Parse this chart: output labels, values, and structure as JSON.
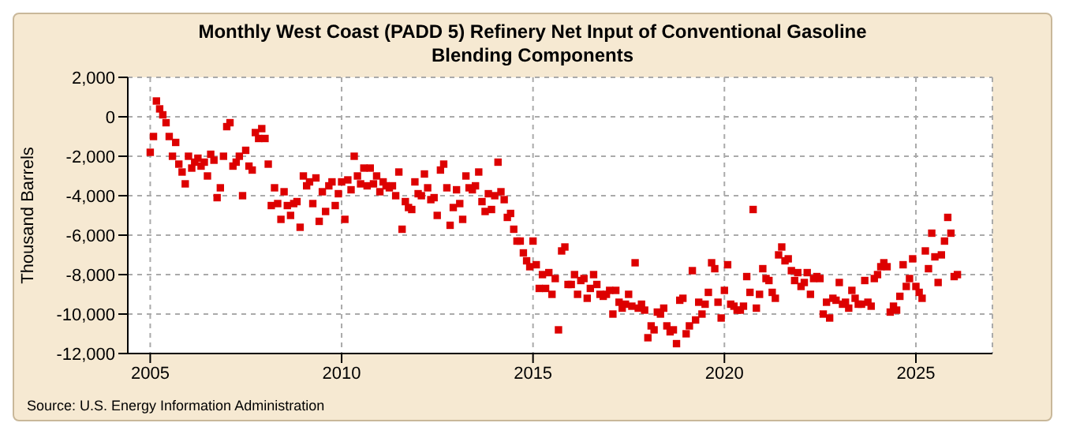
{
  "chart_data": {
    "type": "scatter",
    "title": "Monthly West Coast (PADD 5) Refinery Net Input of Conventional Gasoline Blending Components",
    "ylabel": "Thousand Barrels",
    "annotations": [
      "Source: U.S. Energy Information Administration"
    ],
    "marker": "square",
    "grid": true,
    "xlim": [
      "2004-06",
      "2027-01"
    ],
    "xticks": [
      {
        "value": "2005",
        "label": "2005"
      },
      {
        "value": "2010",
        "label": "2010"
      },
      {
        "value": "2015",
        "label": "2015"
      },
      {
        "value": "2020",
        "label": "2020"
      },
      {
        "value": "2025",
        "label": "2025"
      }
    ],
    "ylim": [
      -12000,
      2000
    ],
    "yticks": [
      {
        "value": -12000,
        "label": "-12,000"
      },
      {
        "value": -10000,
        "label": "-10,000"
      },
      {
        "value": -8000,
        "label": "-8,000"
      },
      {
        "value": -6000,
        "label": "-6,000"
      },
      {
        "value": -4000,
        "label": "-4,000"
      },
      {
        "value": -2000,
        "label": "-2,000"
      },
      {
        "value": 0,
        "label": "0"
      },
      {
        "value": 2000,
        "label": "2,000"
      }
    ],
    "x": [
      "2005-01",
      "2005-02",
      "2005-03",
      "2005-04",
      "2005-05",
      "2005-06",
      "2005-07",
      "2005-08",
      "2005-09",
      "2005-10",
      "2005-11",
      "2005-12",
      "2006-01",
      "2006-02",
      "2006-03",
      "2006-04",
      "2006-05",
      "2006-06",
      "2006-07",
      "2006-08",
      "2006-09",
      "2006-10",
      "2006-11",
      "2006-12",
      "2007-01",
      "2007-02",
      "2007-03",
      "2007-04",
      "2007-05",
      "2007-06",
      "2007-07",
      "2007-08",
      "2007-09",
      "2007-10",
      "2007-11",
      "2007-12",
      "2008-01",
      "2008-02",
      "2008-03",
      "2008-04",
      "2008-05",
      "2008-06",
      "2008-07",
      "2008-08",
      "2008-09",
      "2008-10",
      "2008-11",
      "2008-12",
      "2009-01",
      "2009-02",
      "2009-03",
      "2009-04",
      "2009-05",
      "2009-06",
      "2009-07",
      "2009-08",
      "2009-09",
      "2009-10",
      "2009-11",
      "2009-12",
      "2010-01",
      "2010-02",
      "2010-03",
      "2010-04",
      "2010-05",
      "2010-06",
      "2010-07",
      "2010-08",
      "2010-09",
      "2010-10",
      "2010-11",
      "2010-12",
      "2011-01",
      "2011-02",
      "2011-03",
      "2011-04",
      "2011-05",
      "2011-06",
      "2011-07",
      "2011-08",
      "2011-09",
      "2011-10",
      "2011-11",
      "2011-12",
      "2012-01",
      "2012-02",
      "2012-03",
      "2012-04",
      "2012-05",
      "2012-06",
      "2012-07",
      "2012-08",
      "2012-09",
      "2012-10",
      "2012-11",
      "2012-12",
      "2013-01",
      "2013-02",
      "2013-03",
      "2013-04",
      "2013-05",
      "2013-06",
      "2013-07",
      "2013-08",
      "2013-09",
      "2013-10",
      "2013-11",
      "2013-12",
      "2014-01",
      "2014-02",
      "2014-03",
      "2014-04",
      "2014-05",
      "2014-06",
      "2014-07",
      "2014-08",
      "2014-09",
      "2014-10",
      "2014-11",
      "2014-12",
      "2015-01",
      "2015-02",
      "2015-03",
      "2015-04",
      "2015-05",
      "2015-06",
      "2015-07",
      "2015-08",
      "2015-09",
      "2015-10",
      "2015-11",
      "2015-12",
      "2016-01",
      "2016-02",
      "2016-03",
      "2016-04",
      "2016-05",
      "2016-06",
      "2016-07",
      "2016-08",
      "2016-09",
      "2016-10",
      "2016-11",
      "2016-12",
      "2017-01",
      "2017-02",
      "2017-03",
      "2017-04",
      "2017-05",
      "2017-06",
      "2017-07",
      "2017-08",
      "2017-09",
      "2017-10",
      "2017-11",
      "2017-12",
      "2018-01",
      "2018-02",
      "2018-03",
      "2018-04",
      "2018-05",
      "2018-06",
      "2018-07",
      "2018-08",
      "2018-09",
      "2018-10",
      "2018-11",
      "2018-12",
      "2019-01",
      "2019-02",
      "2019-03",
      "2019-04",
      "2019-05",
      "2019-06",
      "2019-07",
      "2019-08",
      "2019-09",
      "2019-10",
      "2019-11",
      "2019-12",
      "2020-01",
      "2020-02",
      "2020-03",
      "2020-04",
      "2020-05",
      "2020-06",
      "2020-07",
      "2020-08",
      "2020-09",
      "2020-10",
      "2020-11",
      "2020-12",
      "2021-01",
      "2021-02",
      "2021-03",
      "2021-04",
      "2021-05",
      "2021-06",
      "2021-07",
      "2021-08",
      "2021-09",
      "2021-10",
      "2021-11",
      "2021-12",
      "2022-01",
      "2022-02",
      "2022-03",
      "2022-04",
      "2022-05",
      "2022-06",
      "2022-07",
      "2022-08",
      "2022-09",
      "2022-10",
      "2022-11",
      "2022-12",
      "2023-01",
      "2023-02",
      "2023-03",
      "2023-04",
      "2023-05",
      "2023-06",
      "2023-07",
      "2023-08",
      "2023-09",
      "2023-10",
      "2023-11",
      "2023-12",
      "2024-01",
      "2024-02",
      "2024-03",
      "2024-04",
      "2024-05",
      "2024-06",
      "2024-07",
      "2024-08",
      "2024-09",
      "2024-10",
      "2024-11",
      "2024-12",
      "2025-01",
      "2025-02",
      "2025-03",
      "2025-04",
      "2025-05",
      "2025-06",
      "2025-07",
      "2025-08",
      "2025-09",
      "2025-10",
      "2025-11",
      "2025-12",
      "2026-01",
      "2026-02"
    ],
    "series": [
      {
        "color": "#dd0000",
        "values": [
          -1800,
          -1000,
          800,
          400,
          100,
          -300,
          -1000,
          -2000,
          -1300,
          -2400,
          -2800,
          -3400,
          -2000,
          -2600,
          -2300,
          -2100,
          -2500,
          -2300,
          -3000,
          -1900,
          -2200,
          -4100,
          -3600,
          -2000,
          -500,
          -300,
          -2500,
          -2300,
          -2000,
          -4000,
          -1700,
          -2500,
          -2700,
          -800,
          -1100,
          -600,
          -1100,
          -2400,
          -4500,
          -3600,
          -4400,
          -5200,
          -3800,
          -4500,
          -5000,
          -4400,
          -4300,
          -5600,
          -3000,
          -3500,
          -3300,
          -4400,
          -3100,
          -5300,
          -3800,
          -4800,
          -3500,
          -3300,
          -4500,
          -3900,
          -3300,
          -5200,
          -3200,
          -3700,
          -2000,
          -3000,
          -3400,
          -2600,
          -3500,
          -2600,
          -3400,
          -3000,
          -3800,
          -3300,
          -3500,
          -3600,
          -3500,
          -4000,
          -2800,
          -5700,
          -4300,
          -4600,
          -4700,
          -3300,
          -3900,
          -4000,
          -2900,
          -3600,
          -4200,
          -4100,
          -5000,
          -2700,
          -2400,
          -3600,
          -5500,
          -4600,
          -3700,
          -4400,
          -5200,
          -3000,
          -3600,
          -3700,
          -3500,
          -2800,
          -4300,
          -4800,
          -3900,
          -4700,
          -4000,
          -2300,
          -3800,
          -4200,
          -5100,
          -4900,
          -5700,
          -6300,
          -6300,
          -6900,
          -7300,
          -7600,
          -6300,
          -7500,
          -8700,
          -8000,
          -8700,
          -7900,
          -9000,
          -8200,
          -10800,
          -6800,
          -6600,
          -8500,
          -8500,
          -8000,
          -9000,
          -8300,
          -8200,
          -9200,
          -8700,
          -8000,
          -8500,
          -9000,
          -9100,
          -9000,
          -8800,
          -10000,
          -8800,
          -9400,
          -9700,
          -9500,
          -9000,
          -9600,
          -7400,
          -9700,
          -9500,
          -9800,
          -11200,
          -10600,
          -10800,
          -9900,
          -10000,
          -9700,
          -10600,
          -10900,
          -10800,
          -11500,
          -9300,
          -9200,
          -11000,
          -10600,
          -7800,
          -10300,
          -9400,
          -10000,
          -9500,
          -8900,
          -7400,
          -7700,
          -9400,
          -10200,
          -8800,
          -7500,
          -9500,
          -9600,
          -9800,
          -9800,
          -9600,
          -8100,
          -8900,
          -4700,
          -9700,
          -9000,
          -7700,
          -8200,
          -8300,
          -8900,
          -9200,
          -7000,
          -6600,
          -7300,
          -7200,
          -7800,
          -8300,
          -7900,
          -8600,
          -8400,
          -7900,
          -9000,
          -8200,
          -8100,
          -8200,
          -10000,
          -9400,
          -10200,
          -9200,
          -9300,
          -8400,
          -9500,
          -9400,
          -9700,
          -8800,
          -9200,
          -9500,
          -9500,
          -8300,
          -9400,
          -9600,
          -8200,
          -8000,
          -7600,
          -7400,
          -7600,
          -9900,
          -9600,
          -9800,
          -9100,
          -7500,
          -8600,
          -8200,
          -7200,
          -8600,
          -8900,
          -9200,
          -6800,
          -7700,
          -5900,
          -7100,
          -8400,
          -7000,
          -6300,
          -5100,
          -5900,
          -8100,
          -8000
        ]
      }
    ]
  }
}
